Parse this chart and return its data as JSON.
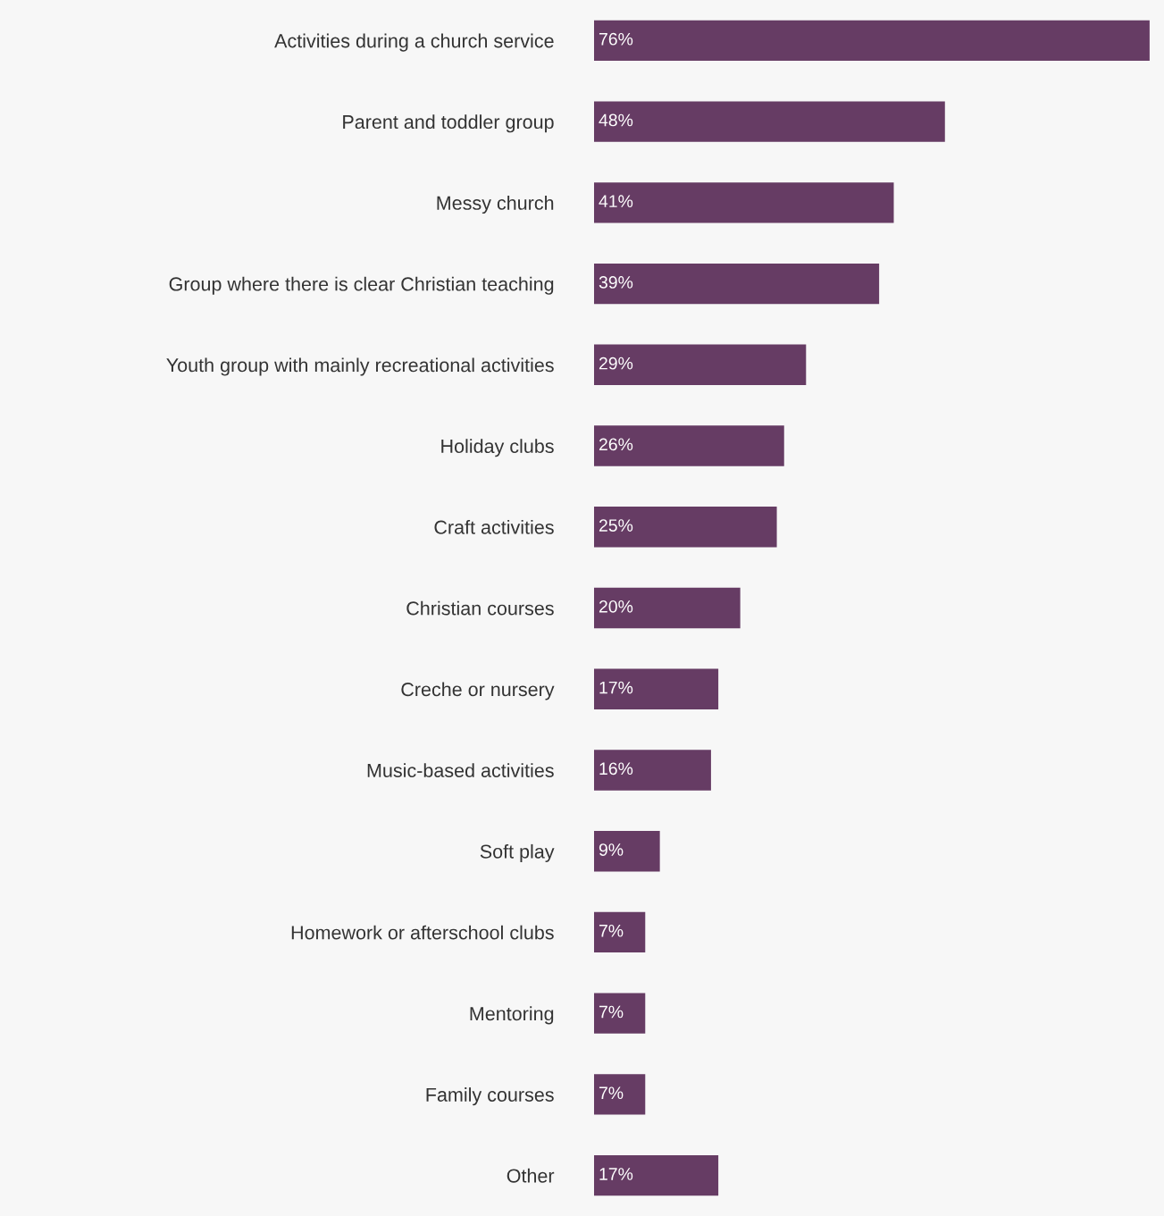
{
  "chart_data": {
    "type": "bar",
    "orientation": "horizontal",
    "color": "#663c64",
    "categories": [
      "Activities during a church service",
      "Parent and toddler group",
      "Messy church",
      "Group where there is clear Christian teaching",
      "Youth group with mainly recreational activities",
      "Holiday clubs",
      "Craft activities",
      "Christian courses",
      "Creche or nursery",
      "Music-based activities",
      "Soft play",
      "Homework or afterschool clubs",
      "Mentoring",
      "Family courses",
      "Other"
    ],
    "values": [
      76,
      48,
      41,
      39,
      29,
      26,
      25,
      20,
      17,
      16,
      9,
      7,
      7,
      7,
      17
    ],
    "value_labels": [
      "76%",
      "48%",
      "41%",
      "39%",
      "29%",
      "26%",
      "25%",
      "20%",
      "17%",
      "16%",
      "9%",
      "7%",
      "7%",
      "7%",
      "17%"
    ]
  }
}
